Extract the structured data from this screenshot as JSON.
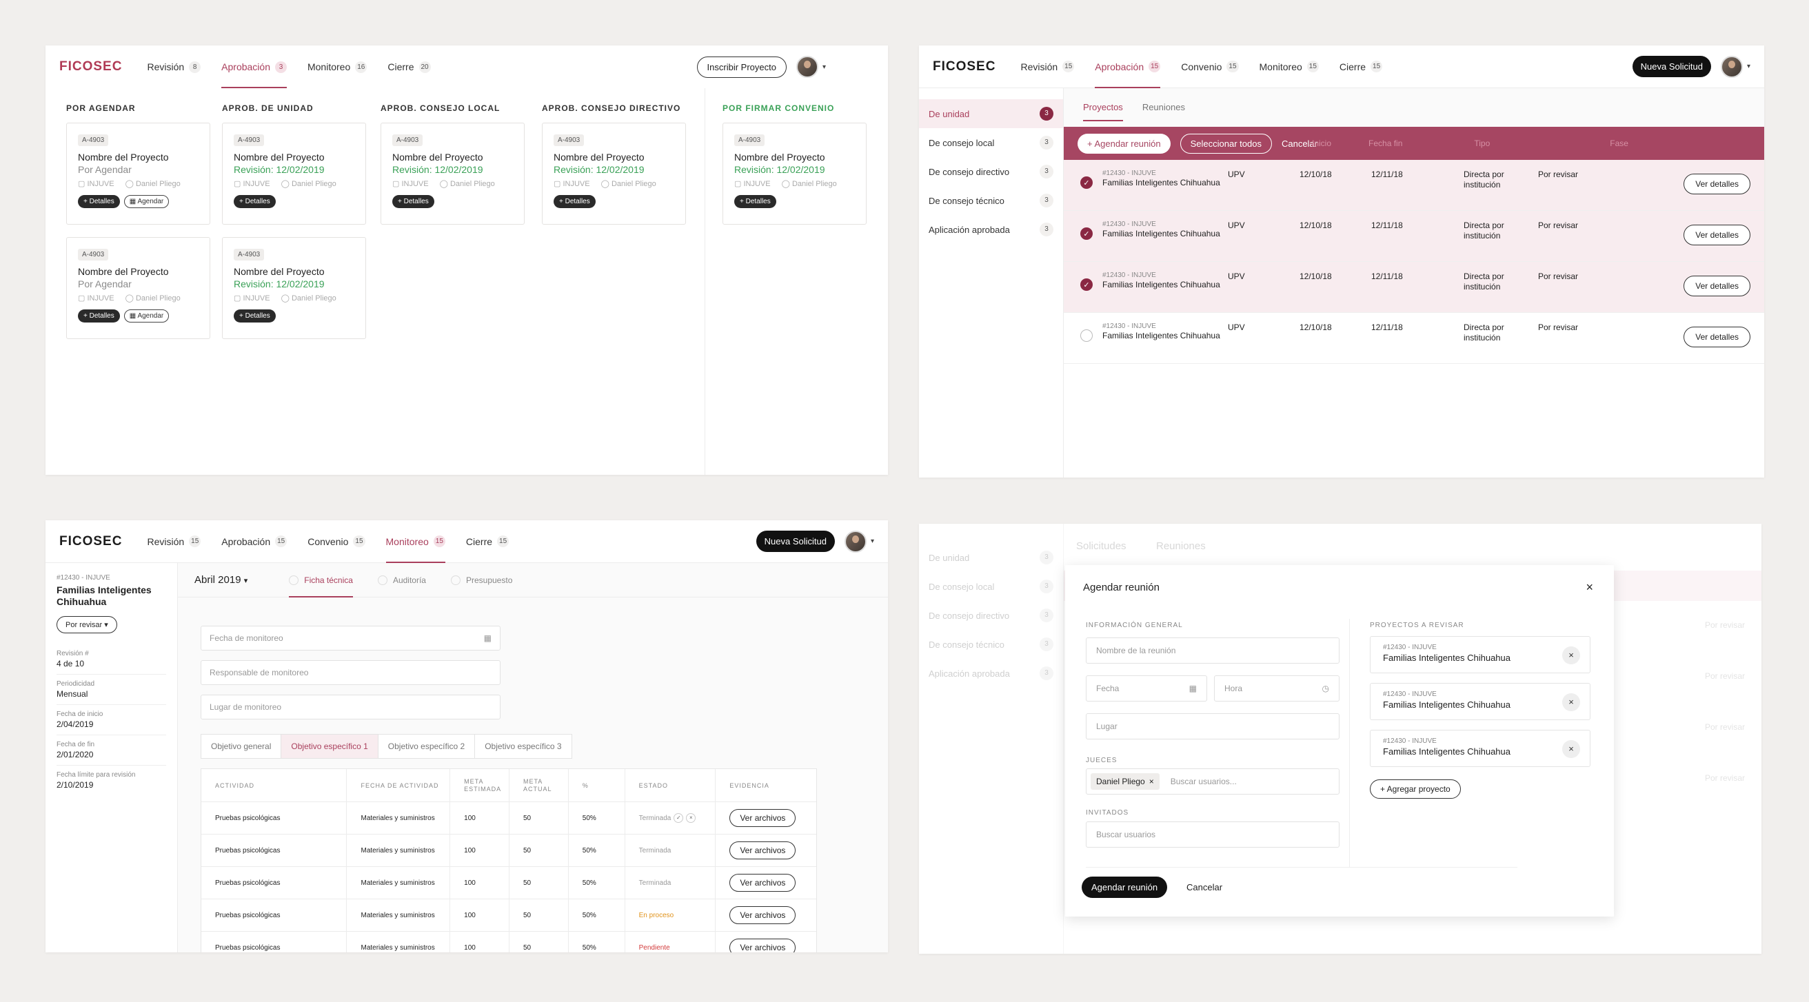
{
  "brand": "FICOSEC",
  "colors": {
    "accent": "#a93f5c",
    "accent_dark": "#8a2843",
    "success": "#3aa157",
    "warning": "#e0921a",
    "danger": "#d23a3a"
  },
  "p1": {
    "nav": [
      {
        "label": "Revisión",
        "count": "8"
      },
      {
        "label": "Aprobación",
        "count": "3"
      },
      {
        "label": "Monitoreo",
        "count": "16"
      },
      {
        "label": "Cierre",
        "count": "20"
      }
    ],
    "action": "Inscribir Proyecto",
    "columns": [
      {
        "title": "POR AGENDAR",
        "cards": [
          {
            "tag": "A-4903",
            "title": "Nombre del Proyecto",
            "status": "Por Agendar",
            "org": "INJUVE",
            "user": "Daniel Pliego",
            "btn1": "+ Detalles",
            "btn2": "Agendar"
          },
          {
            "tag": "A-4903",
            "title": "Nombre del Proyecto",
            "status": "Por Agendar",
            "org": "INJUVE",
            "user": "Daniel Pliego",
            "btn1": "+ Detalles",
            "btn2": "Agendar"
          }
        ]
      },
      {
        "title": "APROB. DE UNIDAD",
        "cards": [
          {
            "tag": "A-4903",
            "title": "Nombre del Proyecto",
            "status": "Revisión: 12/02/2019",
            "org": "INJUVE",
            "user": "Daniel Pliego",
            "btn1": "+ Detalles"
          },
          {
            "tag": "A-4903",
            "title": "Nombre del Proyecto",
            "status": "Revisión: 12/02/2019",
            "org": "INJUVE",
            "user": "Daniel Pliego",
            "btn1": "+ Detalles"
          }
        ]
      },
      {
        "title": "APROB. CONSEJO LOCAL",
        "cards": [
          {
            "tag": "A-4903",
            "title": "Nombre del Proyecto",
            "status": "Revisión: 12/02/2019",
            "org": "INJUVE",
            "user": "Daniel Pliego",
            "btn1": "+ Detalles"
          }
        ]
      },
      {
        "title": "APROB. CONSEJO DIRECTIVO",
        "cards": [
          {
            "tag": "A-4903",
            "title": "Nombre del Proyecto",
            "status": "Revisión: 12/02/2019",
            "org": "INJUVE",
            "user": "Daniel Pliego",
            "btn1": "+ Detalles"
          }
        ]
      },
      {
        "title": "POR FIRMAR CONVENIO",
        "cards": [
          {
            "tag": "A-4903",
            "title": "Nombre del Proyecto",
            "status": "Revisión: 12/02/2019",
            "org": "INJUVE",
            "user": "Daniel Pliego",
            "btn1": "+ Detalles"
          }
        ]
      }
    ]
  },
  "p2": {
    "nav": [
      {
        "label": "Revisión",
        "count": "15"
      },
      {
        "label": "Aprobación",
        "count": "15"
      },
      {
        "label": "Convenio",
        "count": "15"
      },
      {
        "label": "Monitoreo",
        "count": "15"
      },
      {
        "label": "Cierre",
        "count": "15"
      }
    ],
    "action": "Nueva Solicitud",
    "side": [
      {
        "label": "De unidad",
        "count": "3"
      },
      {
        "label": "De consejo local",
        "count": "3"
      },
      {
        "label": "De consejo directivo",
        "count": "3"
      },
      {
        "label": "De consejo técnico",
        "count": "3"
      },
      {
        "label": "Aplicación aprobada",
        "count": "3"
      }
    ],
    "tabs": [
      "Proyectos",
      "Reuniones"
    ],
    "bar": {
      "schedule": "+ Agendar reunión",
      "select_all": "Seleccionar todos",
      "cancel": "Cancelar",
      "ghost1": "Inicio",
      "ghost2": "Fecha fin",
      "ghost3": "Tipo",
      "ghost4": "Fase"
    },
    "rows": [
      {
        "id": "#12430 - INJUVE",
        "name": "Familias Inteligentes Chihuahua",
        "org": "UPV",
        "start": "12/10/18",
        "end": "12/11/18",
        "type": "Directa por institución",
        "phase": "Por revisar",
        "btn": "Ver detalles",
        "check": "✓"
      },
      {
        "id": "#12430 - INJUVE",
        "name": "Familias Inteligentes Chihuahua",
        "org": "UPV",
        "start": "12/10/18",
        "end": "12/11/18",
        "type": "Directa por institución",
        "phase": "Por revisar",
        "btn": "Ver detalles",
        "check": "✓"
      },
      {
        "id": "#12430 - INJUVE",
        "name": "Familias Inteligentes Chihuahua",
        "org": "UPV",
        "start": "12/10/18",
        "end": "12/11/18",
        "type": "Directa por institución",
        "phase": "Por revisar",
        "btn": "Ver detalles",
        "check": "✓"
      },
      {
        "id": "#12430 - INJUVE",
        "name": "Familias Inteligentes Chihuahua",
        "org": "UPV",
        "start": "12/10/18",
        "end": "12/11/18",
        "type": "Directa por institución",
        "phase": "Por revisar",
        "btn": "Ver detalles",
        "check": ""
      }
    ]
  },
  "p3": {
    "nav": [
      {
        "label": "Revisión",
        "count": "15"
      },
      {
        "label": "Aprobación",
        "count": "15"
      },
      {
        "label": "Convenio",
        "count": "15"
      },
      {
        "label": "Monitoreo",
        "count": "15"
      },
      {
        "label": "Cierre",
        "count": "15"
      }
    ],
    "action": "Nueva Solicitud",
    "project": {
      "id": "#12430 - INJUVE",
      "name": "Familias Inteligentes Chihuahua",
      "status": "Por revisar"
    },
    "fields": [
      {
        "k": "Revisión #",
        "v": "4 de 10"
      },
      {
        "k": "Periodicidad",
        "v": "Mensual"
      },
      {
        "k": "Fecha de inicio",
        "v": "2/04/2019"
      },
      {
        "k": "Fecha de fin",
        "v": "2/01/2020"
      },
      {
        "k": "Fecha límite para revisión",
        "v": "2/10/2019"
      }
    ],
    "month": "Abril 2019",
    "tabs": [
      "Ficha técnica",
      "Auditoría",
      "Presupuesto"
    ],
    "inputs": {
      "fecha": "Fecha de monitoreo",
      "resp": "Responsable de monitoreo",
      "lugar": "Lugar de monitoreo"
    },
    "obj_tabs": [
      "Objetivo general",
      "Objetivo específico 1",
      "Objetivo específico 2",
      "Objetivo específico 3"
    ],
    "headers": [
      "ACTIVIDAD",
      "FECHA DE ACTIVIDAD",
      "META ESTIMADA",
      "META ACTUAL",
      "%",
      "ESTADO",
      "EVIDENCIA"
    ],
    "rows": [
      {
        "act": "Pruebas psicológicas",
        "fecha": "Materiales y suministros",
        "est": "100",
        "actual": "50",
        "pct": "50%",
        "estado": "Terminada",
        "btn": "Ver archivos"
      },
      {
        "act": "Pruebas psicológicas",
        "fecha": "Materiales y suministros",
        "est": "100",
        "actual": "50",
        "pct": "50%",
        "estado": "Terminada",
        "btn": "Ver archivos"
      },
      {
        "act": "Pruebas psicológicas",
        "fecha": "Materiales y suministros",
        "est": "100",
        "actual": "50",
        "pct": "50%",
        "estado": "Terminada",
        "btn": "Ver archivos"
      },
      {
        "act": "Pruebas psicológicas",
        "fecha": "Materiales y suministros",
        "est": "100",
        "actual": "50",
        "pct": "50%",
        "estado": "En proceso",
        "btn": "Ver archivos"
      },
      {
        "act": "Pruebas psicológicas",
        "fecha": "Materiales y suministros",
        "est": "100",
        "actual": "50",
        "pct": "50%",
        "estado": "Pendiente",
        "btn": "Ver archivos"
      }
    ]
  },
  "p4": {
    "bg_side": [
      {
        "label": "De unidad",
        "count": "3"
      },
      {
        "label": "De consejo local",
        "count": "3"
      },
      {
        "label": "De consejo directivo",
        "count": "3"
      },
      {
        "label": "De consejo técnico",
        "count": "3"
      },
      {
        "label": "Aplicación aprobada",
        "count": "3"
      }
    ],
    "bg_tabs": [
      "Solicitudes",
      "Reuniones"
    ],
    "bg_phase": "Por revisar",
    "modal": {
      "title": "Agendar reunión",
      "close": "×",
      "sec_general": "INFORMACIÓN GENERAL",
      "name_ph": "Nombre de la reunión",
      "date_ph": "Fecha",
      "time_ph": "Hora",
      "place_ph": "Lugar",
      "sec_judges": "JUECES",
      "judge": "Daniel Pliego",
      "judge_search": "Buscar usuarios...",
      "sec_guests": "INVITADOS",
      "guest_ph": "Buscar usuarios",
      "sec_projects": "PROYECTOS A REVISAR",
      "projects": [
        {
          "id": "#12430 - INJUVE",
          "name": "Familias Inteligentes Chihuahua"
        },
        {
          "id": "#12430 - INJUVE",
          "name": "Familias Inteligentes Chihuahua"
        },
        {
          "id": "#12430 - INJUVE",
          "name": "Familias Inteligentes Chihuahua"
        }
      ],
      "add_project": "+ Agregar proyecto",
      "submit": "Agendar reunión",
      "cancel": "Cancelar"
    }
  }
}
